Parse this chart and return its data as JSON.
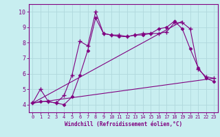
{
  "xlabel": "Windchill (Refroidissement éolien,°C)",
  "background_color": "#c8eef0",
  "line_color": "#800080",
  "grid_color": "#b0d8dc",
  "xlim": [
    -0.5,
    23.5
  ],
  "ylim": [
    3.5,
    10.5
  ],
  "yticks": [
    4,
    5,
    6,
    7,
    8,
    9,
    10
  ],
  "xticks": [
    0,
    1,
    2,
    3,
    4,
    5,
    6,
    7,
    8,
    9,
    10,
    11,
    12,
    13,
    14,
    15,
    16,
    17,
    18,
    19,
    20,
    21,
    22,
    23
  ],
  "series1_x": [
    0,
    1,
    2,
    3,
    4,
    5,
    6,
    7,
    8,
    9,
    10,
    11,
    12,
    13,
    14,
    15,
    16,
    17,
    18,
    19,
    20,
    21,
    22,
    23
  ],
  "series1_y": [
    4.1,
    5.0,
    4.2,
    4.1,
    4.6,
    5.9,
    8.1,
    7.8,
    10.0,
    8.6,
    8.5,
    8.5,
    8.4,
    8.5,
    8.6,
    8.6,
    8.6,
    8.7,
    9.3,
    9.3,
    8.9,
    6.3,
    5.8,
    5.7
  ],
  "series2_x": [
    0,
    1,
    2,
    3,
    4,
    5,
    6,
    7,
    8,
    9,
    10,
    11,
    12,
    13,
    14,
    15,
    16,
    17,
    18,
    19,
    20,
    21,
    22,
    23
  ],
  "series2_y": [
    4.1,
    4.2,
    4.2,
    4.1,
    4.0,
    4.5,
    5.9,
    7.5,
    9.6,
    8.6,
    8.5,
    8.4,
    8.4,
    8.5,
    8.5,
    8.6,
    8.9,
    9.0,
    9.4,
    8.9,
    7.6,
    6.4,
    5.7,
    5.5
  ],
  "series3_x": [
    0,
    23
  ],
  "series3_y": [
    4.1,
    5.7
  ],
  "series4_x": [
    0,
    19
  ],
  "series4_y": [
    4.1,
    9.4
  ]
}
